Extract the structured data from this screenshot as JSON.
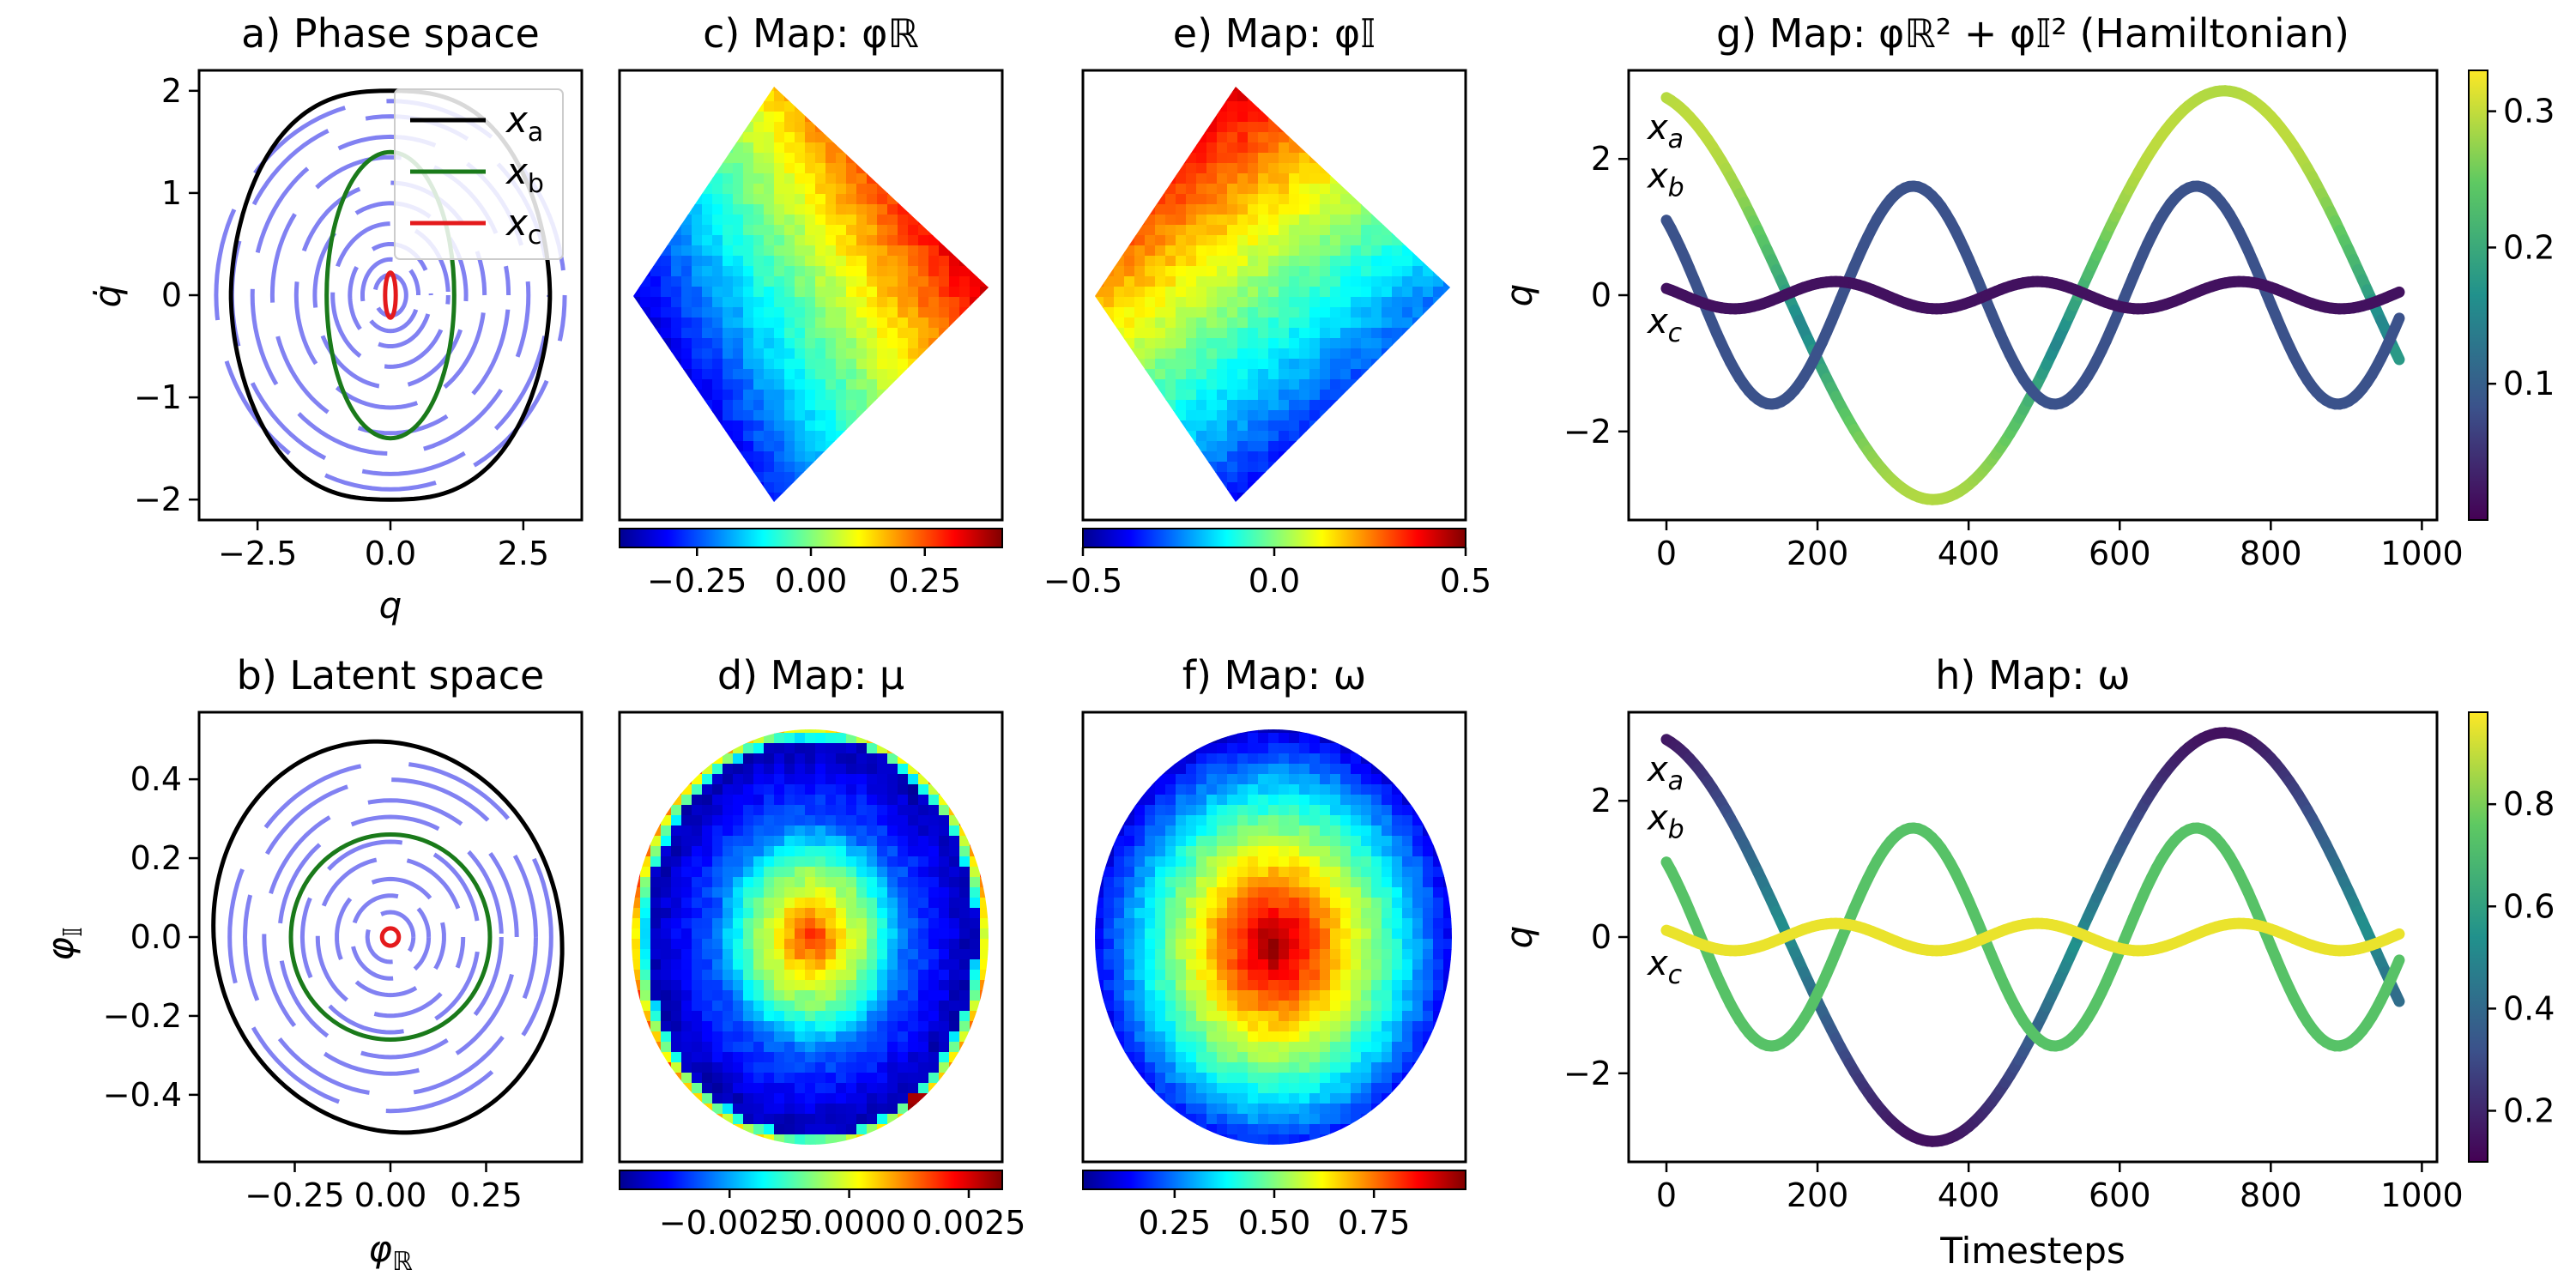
{
  "figure": {
    "panels": {
      "a": {
        "title": "a) Phase space",
        "xlabel": "q",
        "ylabel": "q̇"
      },
      "b": {
        "title": "b) Latent space",
        "xlabel": "φℝ",
        "ylabel": "φ𝕀"
      },
      "c": {
        "title": "c) Map: φℝ"
      },
      "d": {
        "title": "d) Map: μ"
      },
      "e": {
        "title": "e) Map: φ𝕀"
      },
      "f": {
        "title": "f) Map: ω"
      },
      "g": {
        "title": "g) Map: φℝ² + φ𝕀² (Hamiltonian)",
        "ylabel": "q"
      },
      "h": {
        "title": "h) Map: ω",
        "ylabel": "q",
        "xlabel": "Timesteps"
      }
    },
    "legend": [
      "xa",
      "xb",
      "xc"
    ],
    "trajectory_labels": [
      "xa",
      "xb",
      "xc"
    ],
    "colors": {
      "xa": "#000000",
      "xb": "#1a7a1a",
      "xc": "#e41a1c",
      "samples": "#6b6bf0"
    }
  },
  "chart_data": [
    {
      "id": "a",
      "type": "line",
      "title": "a) Phase space",
      "xlabel": "q",
      "ylabel": "q̇",
      "xlim": [
        -3.6,
        3.6
      ],
      "ylim": [
        -2.2,
        2.2
      ],
      "xticks": [
        -2.5,
        0.0,
        2.5
      ],
      "xtick_labels": [
        "−2.5",
        "0.0",
        "2.5"
      ],
      "yticks": [
        -2,
        -1,
        0,
        1,
        2
      ],
      "ytick_labels": [
        "−2",
        "−1",
        "0",
        "1",
        "2"
      ],
      "series": [
        {
          "name": "xa",
          "shape": "pendulum-orbit",
          "q_amplitude": 3.0,
          "qdot_amplitude": 2.0
        },
        {
          "name": "xb",
          "shape": "ellipse",
          "q_amplitude": 1.2,
          "qdot_amplitude": 1.4
        },
        {
          "name": "xc",
          "shape": "ellipse",
          "q_amplitude": 0.1,
          "qdot_amplitude": 0.22
        }
      ],
      "sample_arc_radii": [
        0.2,
        0.35,
        0.5,
        0.7,
        0.9,
        1.1,
        1.35,
        1.55,
        1.75,
        1.9
      ]
    },
    {
      "id": "b",
      "type": "line",
      "title": "b) Latent space",
      "xlabel": "φℝ",
      "ylabel": "φ𝕀",
      "xlim": [
        -0.5,
        0.5
      ],
      "ylim": [
        -0.57,
        0.57
      ],
      "xticks": [
        -0.25,
        0.0,
        0.25
      ],
      "xtick_labels": [
        "−0.25",
        "0.00",
        "0.25"
      ],
      "yticks": [
        -0.4,
        -0.2,
        0.0,
        0.2,
        0.4
      ],
      "ytick_labels": [
        "−0.4",
        "−0.2",
        "0.0",
        "0.2",
        "0.4"
      ],
      "series": [
        {
          "name": "xa",
          "shape": "closed-curve",
          "radius_x": 0.45,
          "radius_y": 0.52
        },
        {
          "name": "xb",
          "shape": "circle",
          "radius": 0.26
        },
        {
          "name": "xc",
          "shape": "circle",
          "radius": 0.022
        }
      ],
      "sample_arc_radii": [
        0.06,
        0.1,
        0.14,
        0.19,
        0.23,
        0.29,
        0.33,
        0.38,
        0.42
      ]
    },
    {
      "id": "c",
      "type": "heatmap",
      "title": "c) Map: φℝ",
      "colormap": "jet",
      "colorbar_range": [
        -0.42,
        0.42
      ],
      "colorbar_ticks": [
        -0.25,
        0.0,
        0.25
      ],
      "colorbar_tick_labels": [
        "−0.25",
        "0.00",
        "0.25"
      ]
    },
    {
      "id": "d",
      "type": "heatmap",
      "title": "d) Map: μ",
      "colormap": "jet",
      "colorbar_range": [
        -0.0048,
        0.0032
      ],
      "colorbar_ticks": [
        -0.0025,
        0.0,
        0.0025
      ],
      "colorbar_tick_labels": [
        "−0.0025",
        "0.0000",
        "0.0025"
      ]
    },
    {
      "id": "e",
      "type": "heatmap",
      "title": "e) Map: φ𝕀",
      "colormap": "jet",
      "colorbar_range": [
        -0.5,
        0.5
      ],
      "colorbar_ticks": [
        -0.5,
        0.0,
        0.5
      ],
      "colorbar_tick_labels": [
        "−0.5",
        "0.0",
        "0.5"
      ]
    },
    {
      "id": "f",
      "type": "heatmap",
      "title": "f) Map: ω",
      "colormap": "jet",
      "colorbar_range": [
        0.02,
        0.98
      ],
      "colorbar_ticks": [
        0.25,
        0.5,
        0.75
      ],
      "colorbar_tick_labels": [
        "0.25",
        "0.50",
        "0.75"
      ]
    },
    {
      "id": "g",
      "type": "line",
      "title": "g) Map: φℝ² + φ𝕀² (Hamiltonian)",
      "xlabel": "",
      "ylabel": "q",
      "colormap": "viridis",
      "xlim": [
        -50,
        1020
      ],
      "ylim": [
        -3.3,
        3.3
      ],
      "xticks": [
        0,
        200,
        400,
        600,
        800,
        1000
      ],
      "xtick_labels": [
        "0",
        "200",
        "400",
        "600",
        "800",
        "1000"
      ],
      "yticks": [
        -2,
        0,
        2
      ],
      "ytick_labels": [
        "−2",
        "0",
        "2"
      ],
      "colorbar_range": [
        0.0,
        0.33
      ],
      "colorbar_ticks": [
        0.1,
        0.2,
        0.3
      ],
      "colorbar_tick_labels": [
        "0.1",
        "0.2",
        "0.3"
      ],
      "series": [
        {
          "name": "xa",
          "start": 2.9,
          "amplitude": 3.0,
          "period": 770,
          "t_end": 970
        },
        {
          "name": "xb",
          "start": 1.1,
          "amplitude": 1.6,
          "period": 375,
          "t_end": 970
        },
        {
          "name": "xc",
          "start": 0.1,
          "amplitude": 0.2,
          "period": 268,
          "t_end": 970
        }
      ]
    },
    {
      "id": "h",
      "type": "line",
      "title": "h) Map: ω",
      "xlabel": "Timesteps",
      "ylabel": "q",
      "colormap": "viridis",
      "xlim": [
        -50,
        1020
      ],
      "ylim": [
        -3.3,
        3.3
      ],
      "xticks": [
        0,
        200,
        400,
        600,
        800,
        1000
      ],
      "xtick_labels": [
        "0",
        "200",
        "400",
        "600",
        "800",
        "1000"
      ],
      "yticks": [
        -2,
        0,
        2
      ],
      "ytick_labels": [
        "−2",
        "0",
        "2"
      ],
      "colorbar_range": [
        0.1,
        0.98
      ],
      "colorbar_ticks": [
        0.2,
        0.4,
        0.6,
        0.8
      ],
      "colorbar_tick_labels": [
        "0.2",
        "0.4",
        "0.6",
        "0.8"
      ],
      "series": [
        {
          "name": "xa",
          "start": 2.9,
          "amplitude": 3.0,
          "period": 770,
          "t_end": 970
        },
        {
          "name": "xb",
          "start": 1.1,
          "amplitude": 1.6,
          "period": 375,
          "t_end": 970
        },
        {
          "name": "xc",
          "start": 0.1,
          "amplitude": 0.2,
          "period": 268,
          "t_end": 970
        }
      ]
    }
  ]
}
